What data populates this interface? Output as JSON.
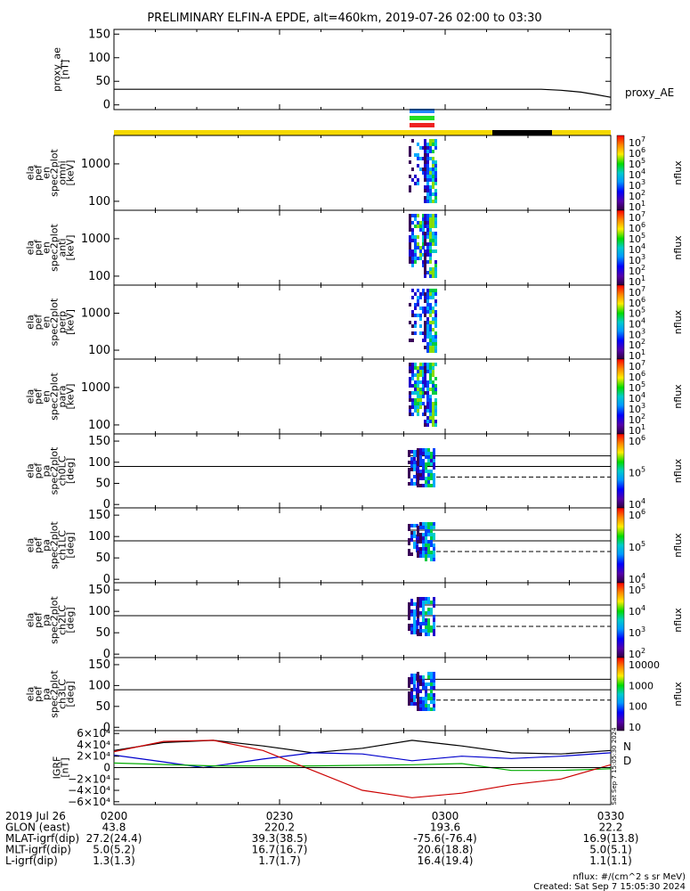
{
  "title": "PRELIMINARY ELFIN-A EPDE, alt=460km, 2019-07-26 02:00 to 03:30",
  "chart_data": [
    {
      "type": "line",
      "ylabel_lines": [
        "proxy_ae",
        "[nT]"
      ],
      "yticks": [
        "150",
        "100",
        "50",
        "0"
      ],
      "ylim": [
        -10,
        160
      ],
      "series": [
        {
          "name": "proxy_AE",
          "x": [
            0,
            0.8,
            0.86,
            0.9,
            0.94,
            0.97,
            1.0
          ],
          "values": [
            33,
            33,
            33,
            31,
            27,
            22,
            16
          ]
        }
      ]
    },
    {
      "type": "heatmap",
      "ylabel_lines": [
        "ela",
        "pef",
        "en",
        "spec2plot",
        "omni",
        "[keV]"
      ],
      "yticks": [
        "1000",
        "100"
      ],
      "colorbar_label": "nflux",
      "colorbar_ticks": [
        "10",
        "10",
        "10",
        "10",
        "10",
        "10",
        "10"
      ],
      "colorbar_exponents": [
        "7",
        "6",
        "5",
        "4",
        "3",
        "2",
        "1"
      ],
      "colorbar_exponent_prefix": ""
    },
    {
      "type": "heatmap",
      "ylabel_lines": [
        "ela",
        "pef",
        "en",
        "spec2plot",
        "anti",
        "[keV]"
      ],
      "yticks": [
        "1000",
        "100"
      ],
      "colorbar_label": "nflux",
      "colorbar_ticks": [
        "10",
        "10",
        "10",
        "10",
        "10",
        "10",
        "10"
      ],
      "colorbar_exponents": [
        "7",
        "6",
        "5",
        "4",
        "3",
        "2",
        "1"
      ]
    },
    {
      "type": "heatmap",
      "ylabel_lines": [
        "ela",
        "pef",
        "en",
        "spec2plot",
        "perp",
        "[keV]"
      ],
      "yticks": [
        "1000",
        "100"
      ],
      "colorbar_label": "nflux",
      "colorbar_ticks": [
        "10",
        "10",
        "10",
        "10",
        "10",
        "10",
        "10"
      ],
      "colorbar_exponents": [
        "7",
        "6",
        "5",
        "4",
        "3",
        "2",
        "1"
      ]
    },
    {
      "type": "heatmap",
      "ylabel_lines": [
        "ela",
        "pef",
        "en",
        "spec2plot",
        "para",
        "[keV]"
      ],
      "yticks": [
        "1000",
        "100"
      ],
      "colorbar_label": "nflux",
      "colorbar_ticks": [
        "10",
        "10",
        "10",
        "10",
        "10",
        "10",
        "10"
      ],
      "colorbar_exponents": [
        "7",
        "6",
        "5",
        "4",
        "3",
        "2",
        "1"
      ]
    },
    {
      "type": "heatmap",
      "ylabel_lines": [
        "ela",
        "pef",
        "pa",
        "spec2plot",
        "ch0LC",
        "[deg]"
      ],
      "yticks": [
        "150",
        "100",
        "50",
        "0"
      ],
      "colorbar_label": "nflux",
      "colorbar_ticks": [
        "10",
        "10",
        "10"
      ],
      "colorbar_exponents": [
        "6",
        "5",
        "4"
      ]
    },
    {
      "type": "heatmap",
      "ylabel_lines": [
        "ela",
        "pef",
        "pa",
        "spec2plot",
        "ch1LC",
        "[deg]"
      ],
      "yticks": [
        "150",
        "100",
        "50",
        "0"
      ],
      "colorbar_label": "nflux",
      "colorbar_ticks": [
        "10",
        "10",
        "10"
      ],
      "colorbar_exponents": [
        "6",
        "5",
        "4"
      ]
    },
    {
      "type": "heatmap",
      "ylabel_lines": [
        "ela",
        "pef",
        "pa",
        "spec2plot",
        "ch2LC",
        "[deg]"
      ],
      "yticks": [
        "150",
        "100",
        "50",
        "0"
      ],
      "colorbar_label": "nflux",
      "colorbar_ticks": [
        "10",
        "10",
        "10",
        "10"
      ],
      "colorbar_exponents": [
        "5",
        "4",
        "3",
        "2"
      ]
    },
    {
      "type": "heatmap",
      "ylabel_lines": [
        "ela",
        "pef",
        "pa",
        "spec2plot",
        "ch3LC",
        "[deg]"
      ],
      "yticks": [
        "150",
        "100",
        "50",
        "0"
      ],
      "colorbar_label": "nflux",
      "colorbar_ticks": [
        "10000",
        "1000",
        "100",
        "10"
      ],
      "colorbar_exponents": []
    },
    {
      "type": "line",
      "ylabel_lines": [
        "IGRF",
        "[nT]"
      ],
      "yticks": [
        "6×10⁴",
        "4×10⁴",
        "2×10⁴",
        "0",
        "−2×10⁴",
        "−4×10⁴",
        "−6×10⁴"
      ],
      "ylim": [
        -65000,
        65000
      ],
      "legend": [
        "N",
        "D"
      ],
      "series": [
        {
          "name": "black",
          "color": "#000000",
          "x": [
            0,
            0.1,
            0.2,
            0.3,
            0.4,
            0.5,
            0.6,
            0.7,
            0.8,
            0.9,
            1.0
          ],
          "values": [
            30000,
            44000,
            48000,
            38000,
            26000,
            34000,
            48000,
            38000,
            26000,
            24000,
            30000
          ]
        },
        {
          "name": "blue",
          "color": "#0000cc",
          "x": [
            0,
            0.1,
            0.18,
            0.3,
            0.4,
            0.5,
            0.6,
            0.7,
            0.8,
            0.9,
            1.0
          ],
          "values": [
            22000,
            10000,
            0,
            15000,
            26000,
            24000,
            12000,
            20000,
            16000,
            20000,
            26000
          ]
        },
        {
          "name": "green",
          "color": "#00aa00",
          "x": [
            0,
            0.2,
            0.4,
            0.6,
            0.7,
            0.8,
            0.9,
            1.0
          ],
          "values": [
            8000,
            3000,
            3000,
            5000,
            7000,
            -5000,
            -5000,
            -2000
          ]
        },
        {
          "name": "red",
          "color": "#cc0000",
          "x": [
            0,
            0.1,
            0.2,
            0.3,
            0.4,
            0.5,
            0.6,
            0.7,
            0.8,
            0.9,
            1.0
          ],
          "values": [
            28000,
            46000,
            48000,
            30000,
            -5000,
            -40000,
            -53000,
            -45000,
            -30000,
            -20000,
            5000
          ]
        }
      ]
    }
  ],
  "xticks": [
    "0200",
    "0230",
    "0300",
    "0330"
  ],
  "footer": {
    "rows": [
      {
        "label": "2019 Jul 26",
        "values": [
          "0200",
          "0230",
          "0300",
          "0330"
        ]
      },
      {
        "label": "GLON (east)",
        "values": [
          "43.8",
          "220.2",
          "193.6",
          "22.2"
        ]
      },
      {
        "label": "MLAT-igrf(dip)",
        "values": [
          "27.2(24.4)",
          "39.3(38.5)",
          "-75.6(-76.4)",
          "16.9(13.8)"
        ]
      },
      {
        "label": "MLT-igrf(dip)",
        "values": [
          "5.0(5.2)",
          "16.7(16.7)",
          "20.6(18.8)",
          "5.0(5.1)"
        ]
      },
      {
        "label": "L-igrf(dip)",
        "values": [
          "1.3(1.3)",
          "1.7(1.7)",
          "16.4(19.4)",
          "1.1(1.1)"
        ]
      }
    ],
    "units_note": "nflux: #/(cm^2 s sr MeV)",
    "created": "Created: Sat Sep  7 15:05:30 2024",
    "side_stamp": "Sat Sep  7 15:05:30 2024"
  },
  "colors": {
    "yellow_bar": "#f5d800",
    "black_bar": "#000000",
    "indicator_blue": "#2288ff",
    "indicator_green": "#22dd22",
    "indicator_red": "#ee2222"
  }
}
